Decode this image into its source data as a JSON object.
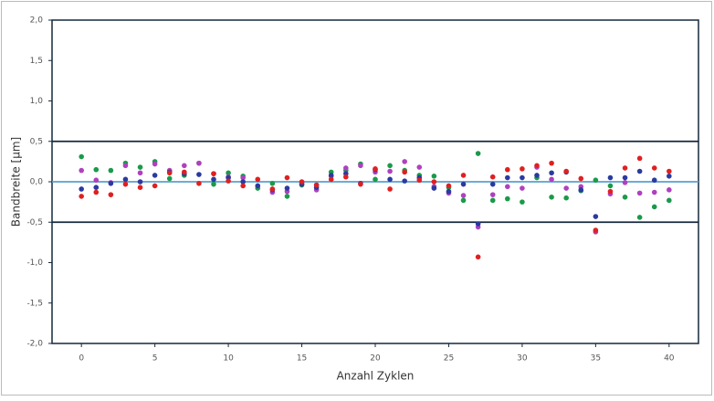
{
  "chart_data": {
    "type": "scatter",
    "x_label": "Anzahl Zyklen",
    "y_label": "Bandbreite [µm]",
    "x": [
      0,
      1,
      2,
      3,
      4,
      5,
      6,
      7,
      8,
      9,
      10,
      11,
      12,
      13,
      14,
      15,
      16,
      17,
      18,
      19,
      20,
      21,
      22,
      23,
      24,
      25,
      26,
      27,
      28,
      29,
      30,
      31,
      32,
      33,
      34,
      35,
      36,
      37,
      38,
      39,
      40
    ],
    "series": [
      {
        "color": "#1a9a4a",
        "values": [
          0.31,
          0.15,
          0.14,
          0.23,
          0.18,
          0.25,
          0.04,
          0.08,
          0.23,
          -0.03,
          0.11,
          0.07,
          -0.08,
          -0.02,
          -0.18,
          -0.04,
          -0.04,
          0.12,
          0.14,
          0.22,
          0.03,
          0.2,
          0.14,
          0.08,
          0.07,
          -0.07,
          -0.23,
          0.35,
          -0.23,
          -0.21,
          -0.25,
          0.05,
          -0.19,
          -0.2,
          -0.11,
          0.02,
          -0.05,
          -0.19,
          -0.44,
          -0.31,
          -0.23
        ]
      },
      {
        "color": "#b040c0",
        "values": [
          0.14,
          0.02,
          -0.01,
          0.2,
          0.11,
          0.22,
          0.14,
          0.2,
          0.23,
          0.1,
          0.06,
          0.05,
          -0.05,
          -0.13,
          -0.12,
          -0.02,
          -0.1,
          0.07,
          0.17,
          0.2,
          0.12,
          0.13,
          0.25,
          0.18,
          -0.06,
          -0.14,
          -0.17,
          -0.56,
          -0.16,
          -0.06,
          -0.08,
          0.18,
          0.03,
          -0.08,
          -0.06,
          -0.62,
          -0.15,
          -0.01,
          -0.14,
          -0.13,
          -0.1
        ]
      },
      {
        "color": "#2a3aa0",
        "values": [
          -0.09,
          -0.07,
          -0.02,
          0.03,
          0.0,
          0.08,
          0.12,
          0.1,
          0.09,
          0.03,
          0.05,
          0.0,
          -0.05,
          -0.1,
          -0.08,
          -0.03,
          -0.07,
          0.08,
          0.1,
          -0.02,
          0.15,
          0.03,
          0.01,
          0.05,
          -0.08,
          -0.12,
          -0.03,
          -0.52,
          -0.03,
          0.05,
          0.05,
          0.08,
          0.11,
          0.12,
          -0.1,
          -0.43,
          0.05,
          0.05,
          0.13,
          0.02,
          0.07
        ]
      },
      {
        "color": "#e02020",
        "values": [
          -0.18,
          -0.13,
          -0.16,
          -0.03,
          -0.07,
          -0.05,
          0.11,
          0.12,
          -0.02,
          0.1,
          0.01,
          -0.05,
          0.03,
          -0.09,
          0.05,
          0.0,
          -0.04,
          0.03,
          0.06,
          -0.03,
          0.16,
          -0.09,
          0.12,
          0.02,
          0.0,
          -0.05,
          0.08,
          -0.93,
          0.06,
          0.15,
          0.16,
          0.2,
          0.23,
          0.13,
          0.04,
          -0.6,
          -0.12,
          0.17,
          0.29,
          0.17,
          0.13
        ]
      }
    ],
    "xlim": [
      -2,
      42
    ],
    "xticks": [
      0,
      5,
      10,
      15,
      20,
      25,
      30,
      35,
      40
    ],
    "ylim": [
      -2,
      2
    ],
    "yticks": [
      {
        "value": -2,
        "label": "-2,0"
      },
      {
        "value": -1.5,
        "label": "-1,5"
      },
      {
        "value": -1,
        "label": "-1,0"
      },
      {
        "value": -0.5,
        "label": "-0,5"
      },
      {
        "value": 0,
        "label": "0,0"
      },
      {
        "value": 0.5,
        "label": "0,5"
      },
      {
        "value": 1,
        "label": "1,0"
      },
      {
        "value": 1.5,
        "label": "1,5"
      },
      {
        "value": 2,
        "label": "2,0"
      }
    ],
    "reference_lines": [
      {
        "value": 0.5,
        "color": "#14283c"
      },
      {
        "value": -0.5,
        "color": "#14283c"
      },
      {
        "value": 0,
        "color": "#5a9fd0"
      }
    ]
  }
}
